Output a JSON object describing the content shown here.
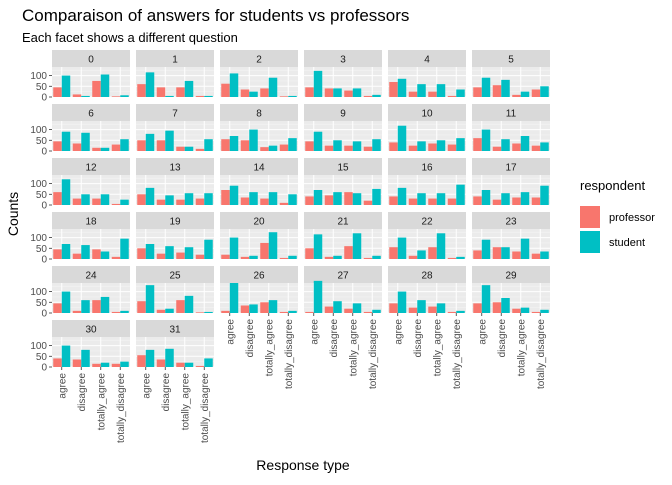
{
  "chart_data": {
    "type": "bar",
    "title": "Comparaison of answers for students vs professors",
    "subtitle": "Each facet shows a different question",
    "xlabel": "Response type",
    "ylabel": "Counts",
    "categories": [
      "agree",
      "disagree",
      "totally_agree",
      "totally_disagree"
    ],
    "y_ticks": [
      "0",
      "50",
      "100"
    ],
    "ylim": [
      0,
      140
    ],
    "grid": true,
    "legend": {
      "title": "respondent",
      "position": "right",
      "entries": [
        {
          "name": "professor",
          "color": "#F8766D"
        },
        {
          "name": "student",
          "color": "#00BFC4"
        }
      ]
    },
    "facets": [
      {
        "label": "0",
        "professor": [
          45,
          12,
          75,
          3
        ],
        "student": [
          100,
          5,
          105,
          8
        ]
      },
      {
        "label": "1",
        "professor": [
          60,
          45,
          45,
          5
        ],
        "student": [
          115,
          5,
          75,
          5
        ]
      },
      {
        "label": "2",
        "professor": [
          62,
          35,
          40,
          3
        ],
        "student": [
          110,
          25,
          90,
          5
        ]
      },
      {
        "label": "3",
        "professor": [
          45,
          40,
          30,
          5
        ],
        "student": [
          122,
          40,
          40,
          10
        ]
      },
      {
        "label": "4",
        "professor": [
          70,
          25,
          25,
          5
        ],
        "student": [
          85,
          60,
          60,
          35
        ]
      },
      {
        "label": "5",
        "professor": [
          45,
          55,
          10,
          35
        ],
        "student": [
          90,
          80,
          25,
          50
        ]
      },
      {
        "label": "6",
        "professor": [
          45,
          35,
          15,
          30
        ],
        "student": [
          90,
          85,
          15,
          55
        ]
      },
      {
        "label": "7",
        "professor": [
          50,
          50,
          20,
          10
        ],
        "student": [
          80,
          95,
          20,
          55
        ]
      },
      {
        "label": "8",
        "professor": [
          55,
          50,
          18,
          30
        ],
        "student": [
          70,
          100,
          25,
          60
        ]
      },
      {
        "label": "9",
        "professor": [
          45,
          25,
          25,
          20
        ],
        "student": [
          90,
          50,
          45,
          55
        ]
      },
      {
        "label": "10",
        "professor": [
          40,
          25,
          35,
          30
        ],
        "student": [
          118,
          45,
          50,
          60
        ]
      },
      {
        "label": "11",
        "professor": [
          60,
          20,
          35,
          25
        ],
        "student": [
          100,
          55,
          70,
          40
        ]
      },
      {
        "label": "12",
        "professor": [
          60,
          30,
          30,
          5
        ],
        "student": [
          120,
          50,
          50,
          25
        ]
      },
      {
        "label": "13",
        "professor": [
          50,
          25,
          25,
          30
        ],
        "student": [
          80,
          45,
          55,
          55
        ]
      },
      {
        "label": "14",
        "professor": [
          70,
          35,
          30,
          10
        ],
        "student": [
          90,
          60,
          60,
          50
        ]
      },
      {
        "label": "15",
        "professor": [
          40,
          45,
          60,
          20
        ],
        "student": [
          70,
          60,
          55,
          75
        ]
      },
      {
        "label": "16",
        "professor": [
          40,
          30,
          30,
          30
        ],
        "student": [
          80,
          55,
          55,
          95
        ]
      },
      {
        "label": "17",
        "professor": [
          40,
          25,
          35,
          35
        ],
        "student": [
          70,
          55,
          60,
          90
        ]
      },
      {
        "label": "18",
        "professor": [
          45,
          25,
          45,
          10
        ],
        "student": [
          70,
          65,
          35,
          95
        ]
      },
      {
        "label": "19",
        "professor": [
          50,
          25,
          30,
          20
        ],
        "student": [
          70,
          60,
          55,
          90
        ]
      },
      {
        "label": "20",
        "professor": [
          20,
          10,
          75,
          5
        ],
        "student": [
          100,
          15,
          125,
          15
        ]
      },
      {
        "label": "21",
        "professor": [
          50,
          10,
          60,
          5
        ],
        "student": [
          115,
          15,
          120,
          15
        ]
      },
      {
        "label": "22",
        "professor": [
          55,
          15,
          55,
          5
        ],
        "student": [
          100,
          40,
          120,
          10
        ]
      },
      {
        "label": "23",
        "professor": [
          40,
          55,
          35,
          25
        ],
        "student": [
          90,
          55,
          95,
          35
        ]
      },
      {
        "label": "24",
        "professor": [
          45,
          10,
          60,
          5
        ],
        "student": [
          100,
          60,
          75,
          10
        ]
      },
      {
        "label": "25",
        "professor": [
          55,
          15,
          60,
          3
        ],
        "student": [
          130,
          20,
          80,
          5
        ]
      },
      {
        "label": "26",
        "professor": [
          10,
          35,
          50,
          5
        ],
        "student": [
          140,
          40,
          60,
          10
        ]
      },
      {
        "label": "27",
        "professor": [
          5,
          30,
          20,
          5
        ],
        "student": [
          150,
          55,
          45,
          15
        ]
      },
      {
        "label": "28",
        "professor": [
          45,
          25,
          30,
          5
        ],
        "student": [
          100,
          60,
          45,
          10
        ]
      },
      {
        "label": "29",
        "professor": [
          45,
          50,
          20,
          5
        ],
        "student": [
          130,
          70,
          25,
          15
        ]
      },
      {
        "label": "30",
        "professor": [
          40,
          35,
          15,
          15
        ],
        "student": [
          100,
          80,
          20,
          25
        ]
      },
      {
        "label": "31",
        "professor": [
          55,
          35,
          20,
          5
        ],
        "student": [
          80,
          85,
          20,
          40
        ]
      }
    ]
  }
}
